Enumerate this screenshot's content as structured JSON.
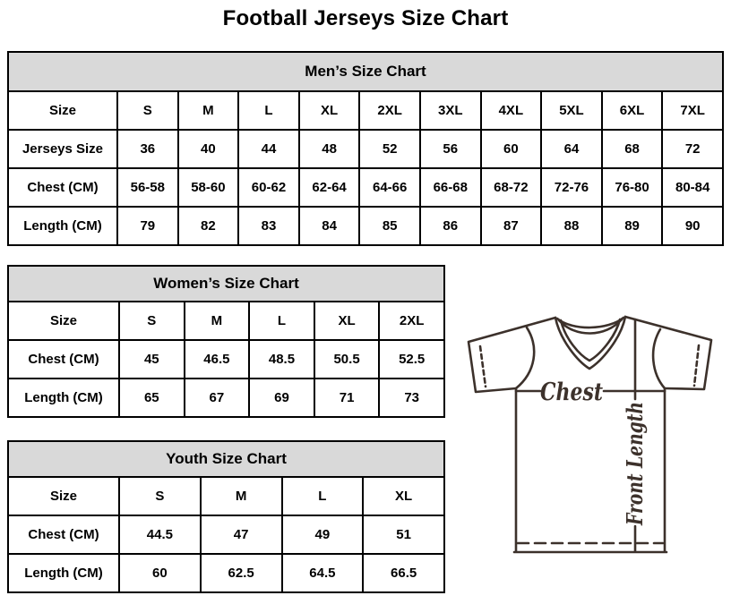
{
  "page": {
    "title": "Football Jerseys Size Chart"
  },
  "men_table": {
    "title": "Men’s Size Chart",
    "rows": [
      [
        "Size",
        "S",
        "M",
        "L",
        "XL",
        "2XL",
        "3XL",
        "4XL",
        "5XL",
        "6XL",
        "7XL"
      ],
      [
        "Jerseys Size",
        "36",
        "40",
        "44",
        "48",
        "52",
        "56",
        "60",
        "64",
        "68",
        "72"
      ],
      [
        "Chest (CM)",
        "56-58",
        "58-60",
        "60-62",
        "62-64",
        "64-66",
        "66-68",
        "68-72",
        "72-76",
        "76-80",
        "80-84"
      ],
      [
        "Length (CM)",
        "79",
        "82",
        "83",
        "84",
        "85",
        "86",
        "87",
        "88",
        "89",
        "90"
      ]
    ]
  },
  "women_table": {
    "title": "Women’s Size Chart",
    "rows": [
      [
        "Size",
        "S",
        "M",
        "L",
        "XL",
        "2XL"
      ],
      [
        "Chest (CM)",
        "45",
        "46.5",
        "48.5",
        "50.5",
        "52.5"
      ],
      [
        "Length (CM)",
        "65",
        "67",
        "69",
        "71",
        "73"
      ]
    ]
  },
  "youth_table": {
    "title": "Youth Size Chart",
    "rows": [
      [
        "Size",
        "S",
        "M",
        "L",
        "XL"
      ],
      [
        "Chest (CM)",
        "44.5",
        "47",
        "49",
        "51"
      ],
      [
        "Length (CM)",
        "60",
        "62.5",
        "64.5",
        "66.5"
      ]
    ]
  },
  "diagram": {
    "chest_label": "Chest",
    "front_length_label": "Front Length"
  },
  "colors": {
    "table_header_bg": "#d9d9d9",
    "table_border": "#000000",
    "diagram_line": "#3c312b",
    "page_bg": "#ffffff"
  }
}
